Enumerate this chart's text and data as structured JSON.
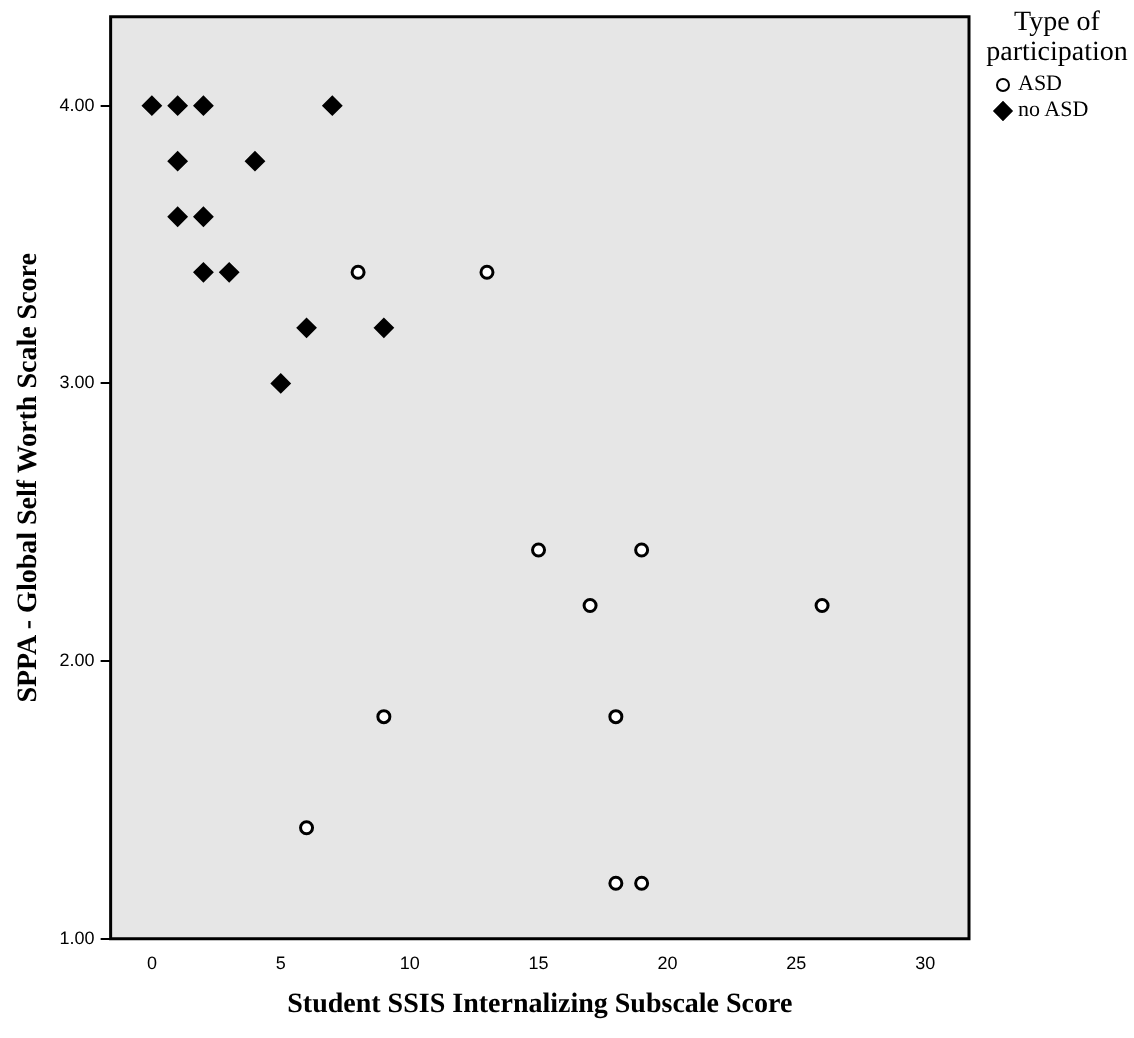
{
  "chart_data": {
    "type": "scatter",
    "xlabel": "Student SSIS Internalizing Subscale Score",
    "ylabel": "SPPA - Global Self Worth Scale Score",
    "legend_title": "Type of participation",
    "legend": "top right",
    "grid": false,
    "xlim": [
      -1.6,
      31.7
    ],
    "xticks": [
      0,
      5,
      10,
      15,
      20,
      25,
      30
    ],
    "ylim": [
      1,
      4.32
    ],
    "yticks": [
      {
        "value": 1,
        "label": "1.00"
      },
      {
        "value": 2,
        "label": "2.00"
      },
      {
        "value": 3,
        "label": "3.00"
      },
      {
        "value": 4,
        "label": "4.00"
      }
    ],
    "series": [
      {
        "name": "ASD",
        "color": "#000000",
        "marker": "circle",
        "x": [
          8,
          13,
          15,
          19,
          17,
          26,
          18,
          9,
          6,
          18,
          19
        ],
        "values": [
          3.4,
          3.4,
          2.4,
          2.4,
          2.2,
          2.2,
          1.8,
          1.8,
          1.4,
          1.2,
          1.2
        ]
      },
      {
        "name": "no ASD",
        "color": "#000000",
        "marker": "diamond",
        "x": [
          0,
          1,
          2,
          7,
          1,
          4,
          1,
          2,
          2,
          3,
          6,
          9,
          5
        ],
        "values": [
          4,
          4,
          4,
          4,
          3.8,
          3.8,
          3.6,
          3.6,
          3.4,
          3.4,
          3.2,
          3.2,
          3
        ]
      }
    ]
  }
}
